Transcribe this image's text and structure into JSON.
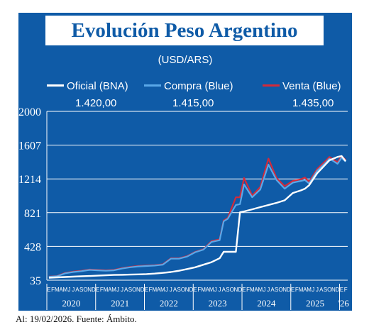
{
  "header": {
    "title": "Evolución Peso Argentino",
    "unit": "(USD/ARS)"
  },
  "legend": [
    {
      "label": "Oficial (BNA)",
      "value": "1.420,00",
      "color": "#ffffff"
    },
    {
      "label": "Compra (Blue)",
      "value": "1.415,00",
      "color": "#5aa8e8"
    },
    {
      "label": "Venta (Blue)",
      "value": "1.435,00",
      "color": "#d42a3a"
    }
  ],
  "footer": "Al: 19/02/2026. Fuente: Ámbito.",
  "colors": {
    "panel": "#0f5ba7",
    "grid": "#ffffff",
    "oficial": "#ffffff",
    "compra": "#5aa8e8",
    "venta": "#d42a3a"
  },
  "chart_data": {
    "type": "line",
    "title": "Evolución Peso Argentino",
    "ylabel": "(USD/ARS)",
    "yticks": [
      "2000",
      "1607",
      "1214",
      "821",
      "428",
      "35"
    ],
    "ylim": [
      35,
      2000
    ],
    "year_labels": [
      "2020",
      "2021",
      "2022",
      "2023",
      "2024",
      "2025",
      "'26"
    ],
    "month_letters": [
      "E",
      "F",
      "M",
      "A",
      "M",
      "J",
      "J",
      "A",
      "S",
      "O",
      "N",
      "D"
    ],
    "last_month_letters": [
      "E",
      "F"
    ],
    "grid": true,
    "legend_placement": "top",
    "x": [
      "2020-01",
      "2020-03",
      "2020-05",
      "2020-07",
      "2020-09",
      "2020-11",
      "2021-01",
      "2021-03",
      "2021-05",
      "2021-07",
      "2021-09",
      "2021-11",
      "2022-01",
      "2022-03",
      "2022-05",
      "2022-07",
      "2022-09",
      "2022-11",
      "2023-01",
      "2023-03",
      "2023-05",
      "2023-07",
      "2023-08",
      "2023-09",
      "2023-11",
      "2023-12",
      "2024-01",
      "2024-03",
      "2024-05",
      "2024-07",
      "2024-09",
      "2024-11",
      "2025-01",
      "2025-03",
      "2025-04",
      "2025-05",
      "2025-07",
      "2025-09",
      "2025-10",
      "2025-11",
      "2025-12",
      "2026-01",
      "2026-02"
    ],
    "series": [
      {
        "name": "Oficial (BNA)",
        "values": [
          63,
          68,
          72,
          76,
          80,
          84,
          88,
          92,
          96,
          98,
          100,
          103,
          106,
          112,
          120,
          130,
          145,
          165,
          185,
          215,
          245,
          290,
          365,
          365,
          365,
          825,
          835,
          860,
          885,
          910,
          935,
          965,
          1050,
          1080,
          1100,
          1140,
          1280,
          1380,
          1430,
          1450,
          1470,
          1480,
          1420
        ]
      },
      {
        "name": "Compra (Blue)",
        "values": [
          75,
          80,
          115,
          130,
          140,
          155,
          150,
          145,
          150,
          170,
          185,
          195,
          200,
          205,
          215,
          285,
          285,
          310,
          360,
          390,
          480,
          500,
          720,
          750,
          910,
          920,
          1150,
          1000,
          1090,
          1380,
          1200,
          1100,
          1170,
          1190,
          1200,
          1160,
          1310,
          1400,
          1450,
          1420,
          1390,
          1460,
          1415
        ]
      },
      {
        "name": "Venta (Blue)",
        "values": [
          78,
          83,
          120,
          135,
          145,
          160,
          155,
          150,
          155,
          175,
          190,
          200,
          205,
          210,
          220,
          290,
          290,
          315,
          365,
          395,
          490,
          510,
          730,
          760,
          1000,
          1000,
          1225,
          1020,
          1120,
          1450,
          1225,
          1130,
          1190,
          1210,
          1230,
          1180,
          1330,
          1420,
          1470,
          1440,
          1410,
          1480,
          1435
        ]
      }
    ]
  }
}
